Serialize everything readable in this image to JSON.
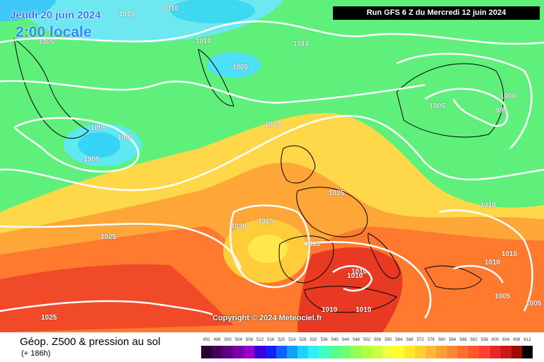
{
  "header": {
    "date": "Jeudi 20 juin 2024",
    "local_time": "2:00 locale",
    "run": "Run GFS 6 Z du Mercredi 12 juin 2024"
  },
  "copyright": "Copyright © 2024 Meteociel.fr",
  "isobars": [
    {
      "label": "1015"
    },
    {
      "label": "1010"
    },
    {
      "label": "1005"
    },
    {
      "label": "1010"
    },
    {
      "label": "1005"
    },
    {
      "label": "1010"
    },
    {
      "label": "1005"
    },
    {
      "label": "1000"
    },
    {
      "label": "1000"
    },
    {
      "label": "1010"
    },
    {
      "label": "1000"
    },
    {
      "label": "1005"
    },
    {
      "label": "995"
    },
    {
      "label": "1025"
    },
    {
      "label": "1010"
    },
    {
      "label": "1020"
    },
    {
      "label": "1015"
    },
    {
      "label": "1025"
    },
    {
      "label": "1010"
    },
    {
      "label": "1010"
    },
    {
      "label": "1010"
    },
    {
      "label": "1010"
    },
    {
      "label": "1010"
    },
    {
      "label": "1005"
    },
    {
      "label": "1005"
    },
    {
      "label": "1010"
    },
    {
      "label": "1010"
    },
    {
      "label": "1025"
    }
  ],
  "footer": {
    "title": "Géop. Z500 & pression au sol",
    "subtitle": "(+ 186h)"
  },
  "legend": {
    "labels": [
      "492",
      "496",
      "500",
      "504",
      "508",
      "512",
      "516",
      "520",
      "524",
      "528",
      "532",
      "536",
      "540",
      "544",
      "548",
      "552",
      "556",
      "560",
      "564",
      "568",
      "572",
      "576",
      "580",
      "584",
      "588",
      "592",
      "596",
      "600",
      "604",
      "608",
      "612"
    ],
    "colors": [
      "#2a0033",
      "#45005a",
      "#600080",
      "#7a00a8",
      "#9400d0",
      "#3a00d8",
      "#1020ff",
      "#1060ff",
      "#10a0ff",
      "#20d0ff",
      "#30f0f0",
      "#40ffc0",
      "#50ff90",
      "#70ff70",
      "#90ff50",
      "#b0ff40",
      "#d0ff40",
      "#f0ff40",
      "#ffff30",
      "#ffe830",
      "#ffd030",
      "#ffb830",
      "#ffa030",
      "#ff8830",
      "#ff7030",
      "#ff5830",
      "#ff4030",
      "#e82828",
      "#c81818",
      "#a00808",
      "#000000"
    ]
  }
}
